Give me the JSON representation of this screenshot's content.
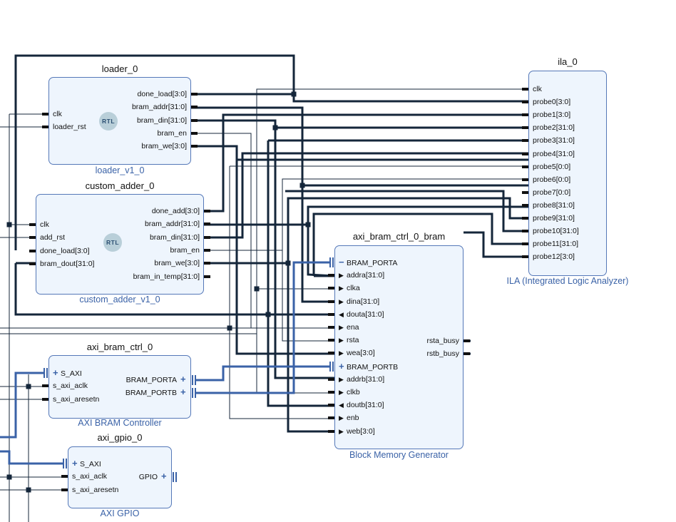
{
  "colors": {
    "wire": "#14263a",
    "bus_wire": "#3a62a7",
    "block_fill": "#eef5fd",
    "block_border": "#5578b8"
  },
  "blocks": {
    "loader": {
      "title": "loader_0",
      "subtitle": "loader_v1_0",
      "logo": "RTL",
      "left": [
        "clk",
        "loader_rst"
      ],
      "right": [
        "done_load[3:0]",
        "bram_addr[31:0]",
        "bram_din[31:0]",
        "bram_en",
        "bram_we[3:0]"
      ]
    },
    "adder": {
      "title": "custom_adder_0",
      "subtitle": "custom_adder_v1_0",
      "logo": "RTL",
      "left": [
        "clk",
        "add_rst",
        "done_load[3:0]",
        "bram_dout[31:0]"
      ],
      "right": [
        "done_add[3:0]",
        "bram_addr[31:0]",
        "bram_din[31:0]",
        "bram_en",
        "bram_we[3:0]",
        "bram_in_temp[31:0]"
      ]
    },
    "ctrl": {
      "title": "axi_bram_ctrl_0",
      "subtitle": "AXI BRAM Controller",
      "left": [
        {
          "label": "S_AXI",
          "icon": "plus"
        },
        {
          "label": "s_axi_aclk",
          "icon": ""
        },
        {
          "label": "s_axi_aresetn",
          "icon": ""
        }
      ],
      "right": [
        {
          "label": "BRAM_PORTA",
          "icon": "plus"
        },
        {
          "label": "BRAM_PORTB",
          "icon": "plus"
        }
      ]
    },
    "gpio": {
      "title": "axi_gpio_0",
      "subtitle": "AXI GPIO",
      "left": [
        {
          "label": "S_AXI",
          "icon": "plus"
        },
        {
          "label": "s_axi_aclk",
          "icon": ""
        },
        {
          "label": "s_axi_aresetn",
          "icon": ""
        }
      ],
      "right": [
        {
          "label": "GPIO",
          "icon": "plus"
        }
      ]
    },
    "bram": {
      "title": "axi_bram_ctrl_0_bram",
      "subtitle": "Block Memory Generator",
      "left": [
        {
          "label": "BRAM_PORTA",
          "icon": "minus"
        },
        {
          "label": "addra[31:0]",
          "icon": "arrow-right"
        },
        {
          "label": "clka",
          "icon": "arrow-right"
        },
        {
          "label": "dina[31:0]",
          "icon": "arrow-right"
        },
        {
          "label": "douta[31:0]",
          "icon": "arrow-left"
        },
        {
          "label": "ena",
          "icon": "arrow-right"
        },
        {
          "label": "rsta",
          "icon": "arrow-right"
        },
        {
          "label": "wea[3:0]",
          "icon": "arrow-right"
        },
        {
          "label": "BRAM_PORTB",
          "icon": "plus"
        },
        {
          "label": "addrb[31:0]",
          "icon": "arrow-right"
        },
        {
          "label": "clkb",
          "icon": "arrow-right"
        },
        {
          "label": "doutb[31:0]",
          "icon": "arrow-left"
        },
        {
          "label": "enb",
          "icon": "arrow-right"
        },
        {
          "label": "web[3:0]",
          "icon": "arrow-right"
        }
      ],
      "right": [
        "rsta_busy",
        "rstb_busy"
      ]
    },
    "ila": {
      "title": "ila_0",
      "subtitle": "ILA (Integrated Logic Analyzer)",
      "left": [
        "clk",
        "probe0[3:0]",
        "probe1[3:0]",
        "probe2[31:0]",
        "probe3[31:0]",
        "probe4[31:0]",
        "probe5[0:0]",
        "probe6[0:0]",
        "probe7[0:0]",
        "probe8[31:0]",
        "probe9[31:0]",
        "probe10[31:0]",
        "probe11[31:0]",
        "probe12[3:0]"
      ],
      "right": []
    }
  }
}
